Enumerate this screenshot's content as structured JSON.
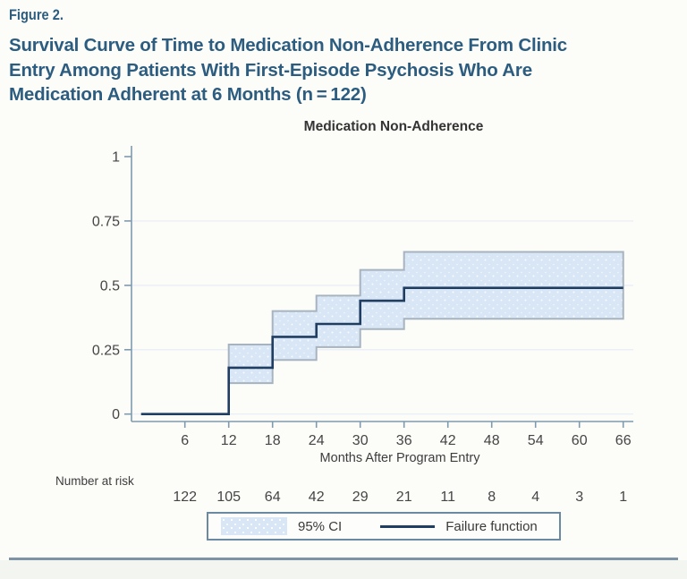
{
  "figure_label": "Figure 2.",
  "title_lines": [
    "Survival Curve of Time to Medication Non-Adherence From Clinic",
    "Entry Among Patients With First-Episode Psychosis Who Are",
    "Medication Adherent at 6 Months (n = 122)"
  ],
  "legend": {
    "ci_label": "95% CI",
    "line_label": "Failure function"
  },
  "colors": {
    "title_blue": "#2c5c7f",
    "failure_line": "#203d62",
    "ci_fill": "#d8e6f5",
    "ci_border": "#a7b3bf",
    "axis": "#7f9aae",
    "tick_text": "#454545",
    "gridline": "#e8ebf5",
    "legend_border": "#6b89a3",
    "bottom_rule": "#7e94a6"
  },
  "chart_data": {
    "type": "line",
    "subtype": "kaplan-meier-failure-step",
    "title": "Medication Non-Adherence",
    "xlabel": "Months After Program Entry",
    "ylabel": "",
    "xlim": [
      0,
      67.5
    ],
    "ylim": [
      0,
      1
    ],
    "xticks": [
      6,
      12,
      18,
      24,
      30,
      36,
      42,
      48,
      54,
      60,
      66
    ],
    "yticks": [
      0,
      0.25,
      0.5,
      0.75,
      1
    ],
    "ytick_labels": [
      "0",
      "0.25",
      "0.5",
      "0.75",
      "1"
    ],
    "grid": true,
    "legend_position": "bottom",
    "t_max": 66,
    "failure_function_steps": [
      {
        "t": 0,
        "v": 0
      },
      {
        "t": 12,
        "v": 0.18
      },
      {
        "t": 18,
        "v": 0.3
      },
      {
        "t": 24,
        "v": 0.35
      },
      {
        "t": 30,
        "v": 0.44
      },
      {
        "t": 36,
        "v": 0.49
      }
    ],
    "ci_intervals": [
      {
        "t0": 12,
        "t1": 18,
        "lower": 0.12,
        "upper": 0.27
      },
      {
        "t0": 18,
        "t1": 24,
        "lower": 0.21,
        "upper": 0.4
      },
      {
        "t0": 24,
        "t1": 30,
        "lower": 0.26,
        "upper": 0.46
      },
      {
        "t0": 30,
        "t1": 36,
        "lower": 0.33,
        "upper": 0.56
      },
      {
        "t0": 36,
        "t1": 66,
        "lower": 0.37,
        "upper": 0.63
      }
    ],
    "number_at_risk": {
      "label": "Number at risk",
      "times": [
        6,
        12,
        18,
        24,
        30,
        36,
        42,
        48,
        54,
        60,
        66
      ],
      "values": [
        122,
        105,
        64,
        42,
        29,
        21,
        11,
        8,
        4,
        3,
        1
      ]
    }
  }
}
